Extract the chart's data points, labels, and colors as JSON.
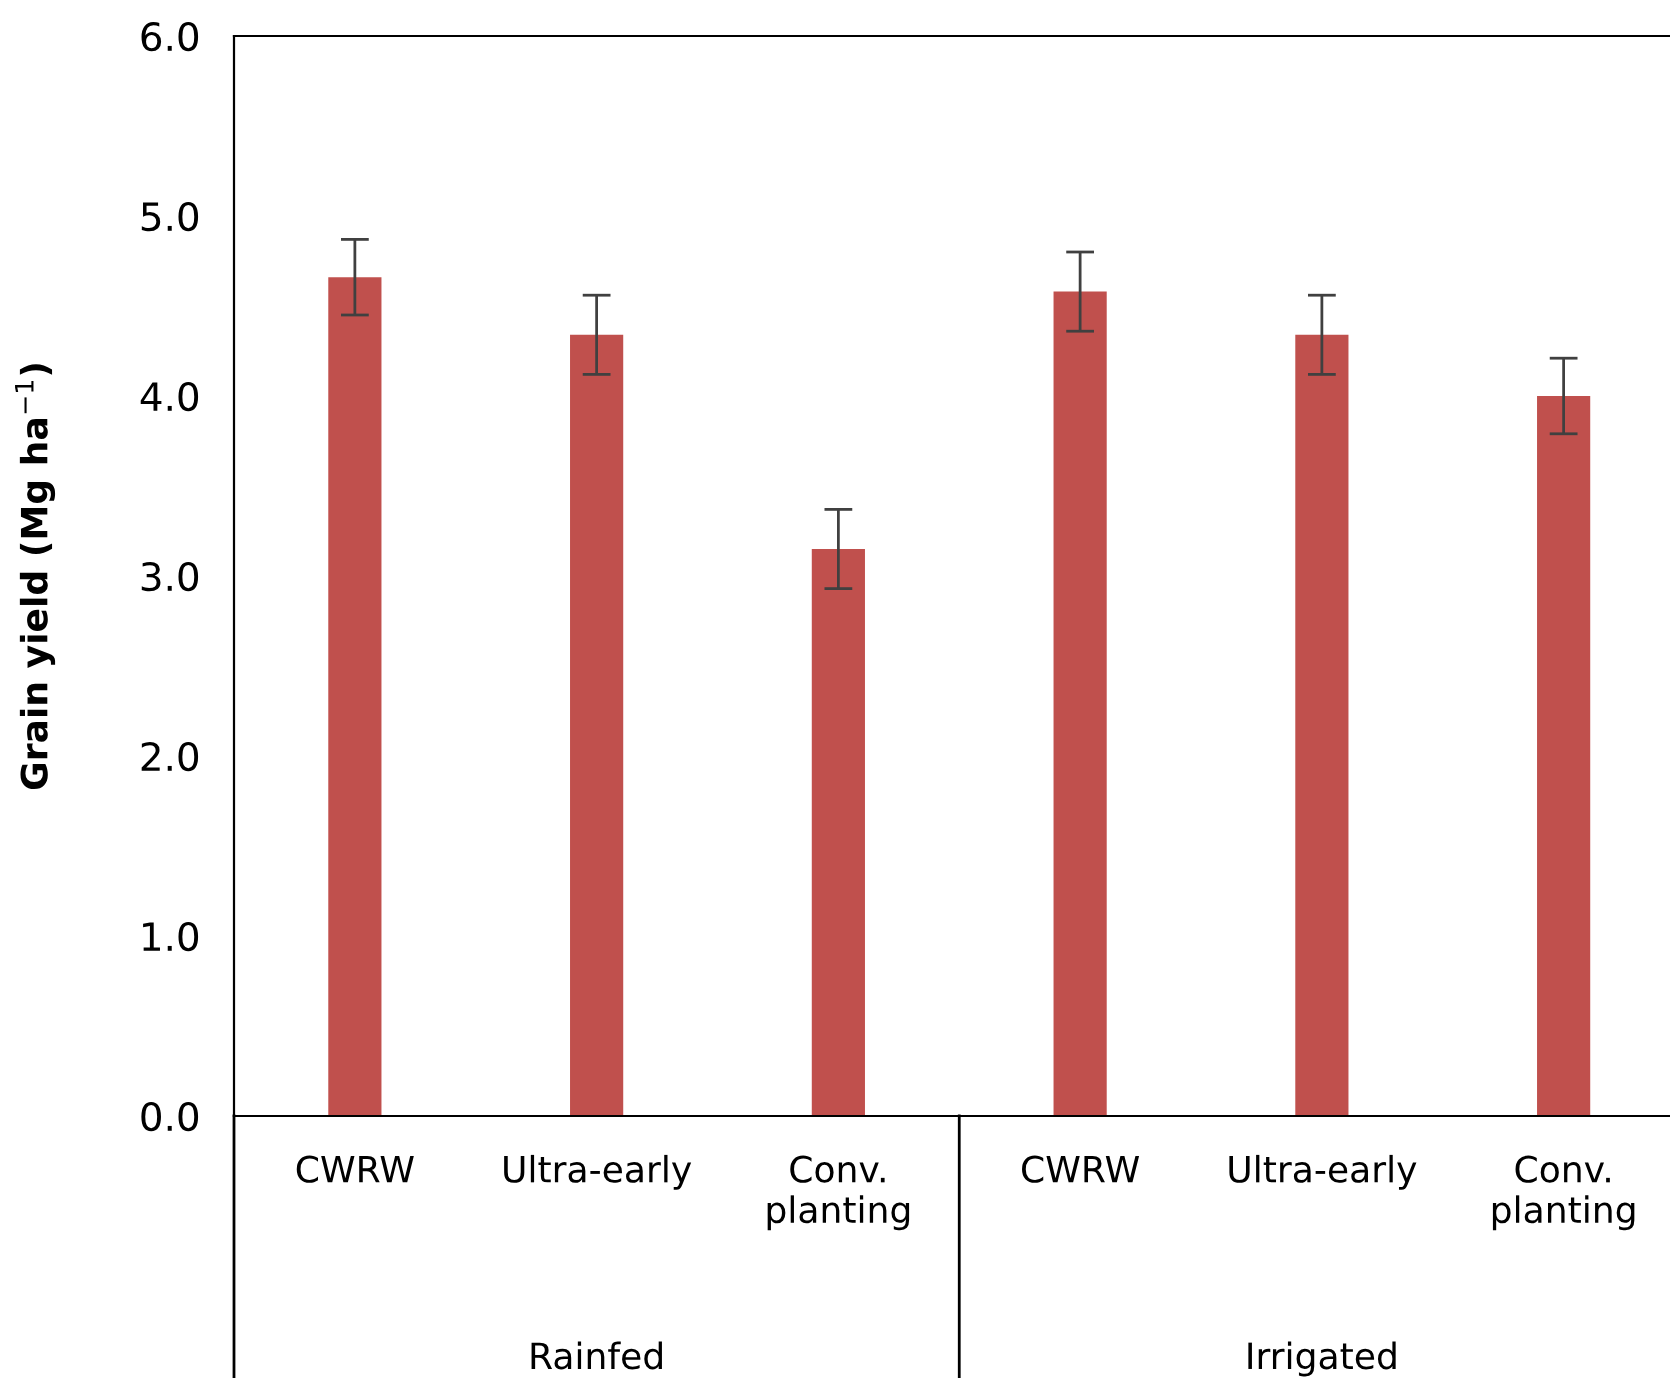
{
  "chart_data": {
    "type": "bar",
    "ylabel": "Grain yield (Mg ha$^{−1}$)",
    "categories": [
      "CWRW",
      "Ultra-early",
      "Conv.\nplanting",
      "CWRW",
      "Ultra-early",
      "Conv.\nplanting"
    ],
    "values": [
      4.66,
      4.34,
      3.15,
      4.58,
      4.34,
      4.0
    ],
    "errors": [
      0.21,
      0.22,
      0.22,
      0.22,
      0.22,
      0.21
    ],
    "color": "#c0504d",
    "ylim": [
      0.0,
      6.0
    ],
    "yticks": [
      {
        "value": 0,
        "label": "0.0"
      },
      {
        "value": 1,
        "label": "1.0"
      },
      {
        "value": 2,
        "label": "2.0"
      },
      {
        "value": 3,
        "label": "3.0"
      },
      {
        "value": 4,
        "label": "4.0"
      },
      {
        "value": 5,
        "label": "5.0"
      },
      {
        "value": 6,
        "label": "6.0"
      }
    ],
    "annotations": [
      "Rainfed",
      "Irrigated"
    ],
    "grid": false,
    "legend": false
  }
}
